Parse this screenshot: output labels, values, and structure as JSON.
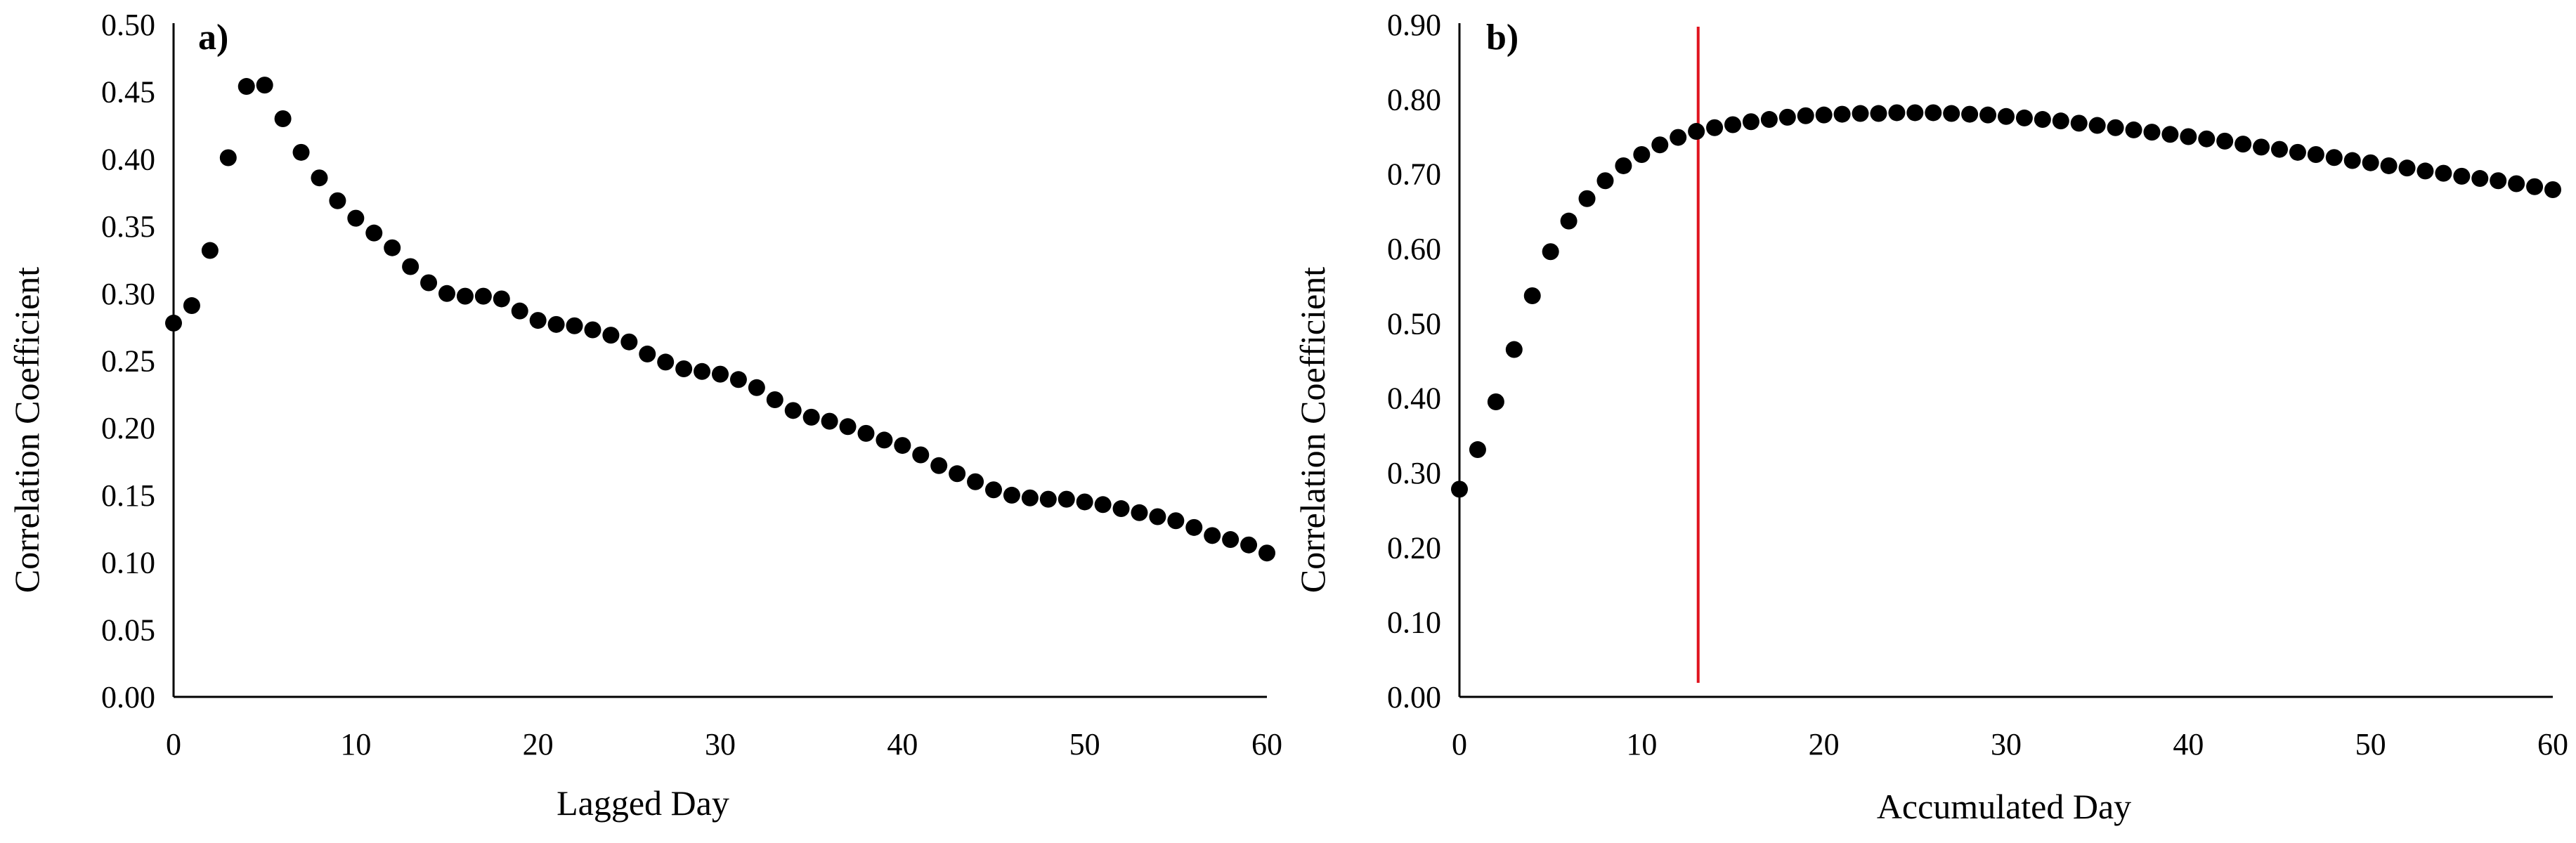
{
  "colors": {
    "points": "#000000",
    "axes": "#000000",
    "marker_line": "#e0141e"
  },
  "chart_data": [
    {
      "id": "a",
      "type": "scatter",
      "panel_label": "a)",
      "xlabel": "Lagged Day",
      "ylabel": "Correlation Coefficient",
      "xlim": [
        0,
        60
      ],
      "ylim": [
        0,
        0.5
      ],
      "x_ticks": [
        0,
        10,
        20,
        30,
        40,
        50,
        60
      ],
      "x_tick_labels": [
        "0",
        "10",
        "20",
        "30",
        "40",
        "50",
        "60"
      ],
      "y_ticks": [
        0,
        0.05,
        0.1,
        0.15,
        0.2,
        0.25,
        0.3,
        0.35,
        0.4,
        0.45,
        0.5
      ],
      "y_tick_labels": [
        "0.00",
        "0.05",
        "0.10",
        "0.15",
        "0.20",
        "0.25",
        "0.30",
        "0.35",
        "0.40",
        "0.45",
        "0.50"
      ],
      "x": [
        0,
        1,
        2,
        3,
        4,
        5,
        6,
        7,
        8,
        9,
        10,
        11,
        12,
        13,
        14,
        15,
        16,
        17,
        18,
        19,
        20,
        21,
        22,
        23,
        24,
        25,
        26,
        27,
        28,
        29,
        30,
        31,
        32,
        33,
        34,
        35,
        36,
        37,
        38,
        39,
        40,
        41,
        42,
        43,
        44,
        45,
        46,
        47,
        48,
        49,
        50,
        51,
        52,
        53,
        54,
        55,
        56,
        57,
        58,
        59,
        60
      ],
      "y": [
        0.278,
        0.291,
        0.332,
        0.401,
        0.454,
        0.455,
        0.43,
        0.405,
        0.386,
        0.369,
        0.356,
        0.345,
        0.334,
        0.32,
        0.308,
        0.3,
        0.298,
        0.298,
        0.296,
        0.287,
        0.28,
        0.277,
        0.276,
        0.273,
        0.269,
        0.264,
        0.255,
        0.249,
        0.244,
        0.242,
        0.24,
        0.236,
        0.23,
        0.221,
        0.213,
        0.208,
        0.205,
        0.201,
        0.196,
        0.191,
        0.187,
        0.18,
        0.172,
        0.166,
        0.16,
        0.154,
        0.15,
        0.148,
        0.147,
        0.147,
        0.145,
        0.143,
        0.14,
        0.137,
        0.134,
        0.131,
        0.126,
        0.12,
        0.117,
        0.113,
        0.107
      ]
    },
    {
      "id": "b",
      "type": "scatter",
      "panel_label": "b)",
      "xlabel": "Accumulated Day",
      "ylabel": "Correlation Coefficient",
      "xlim": [
        0,
        60
      ],
      "ylim": [
        0,
        0.9
      ],
      "x_ticks": [
        0,
        10,
        20,
        30,
        40,
        50,
        60
      ],
      "x_tick_labels": [
        "0",
        "10",
        "20",
        "30",
        "40",
        "50",
        "60"
      ],
      "y_ticks": [
        0,
        0.1,
        0.2,
        0.3,
        0.4,
        0.5,
        0.6,
        0.7,
        0.8,
        0.9
      ],
      "y_tick_labels": [
        "0.00",
        "0.10",
        "0.20",
        "0.30",
        "0.40",
        "0.50",
        "0.60",
        "0.70",
        "0.80",
        "0.90"
      ],
      "vline_x": 13.1,
      "x": [
        0,
        1,
        2,
        3,
        4,
        5,
        6,
        7,
        8,
        9,
        10,
        11,
        12,
        13,
        14,
        15,
        16,
        17,
        18,
        19,
        20,
        21,
        22,
        23,
        24,
        25,
        26,
        27,
        28,
        29,
        30,
        31,
        32,
        33,
        34,
        35,
        36,
        37,
        38,
        39,
        40,
        41,
        42,
        43,
        44,
        45,
        46,
        47,
        48,
        49,
        50,
        51,
        52,
        53,
        54,
        55,
        56,
        57,
        58,
        59,
        60
      ],
      "y": [
        0.278,
        0.331,
        0.395,
        0.465,
        0.537,
        0.596,
        0.637,
        0.667,
        0.691,
        0.711,
        0.726,
        0.739,
        0.749,
        0.757,
        0.762,
        0.766,
        0.77,
        0.773,
        0.776,
        0.778,
        0.779,
        0.78,
        0.781,
        0.781,
        0.782,
        0.782,
        0.782,
        0.781,
        0.78,
        0.779,
        0.777,
        0.775,
        0.773,
        0.771,
        0.768,
        0.765,
        0.762,
        0.759,
        0.756,
        0.753,
        0.75,
        0.747,
        0.744,
        0.74,
        0.736,
        0.733,
        0.729,
        0.726,
        0.722,
        0.718,
        0.715,
        0.711,
        0.708,
        0.704,
        0.701,
        0.697,
        0.694,
        0.691,
        0.687,
        0.683,
        0.679
      ]
    }
  ]
}
